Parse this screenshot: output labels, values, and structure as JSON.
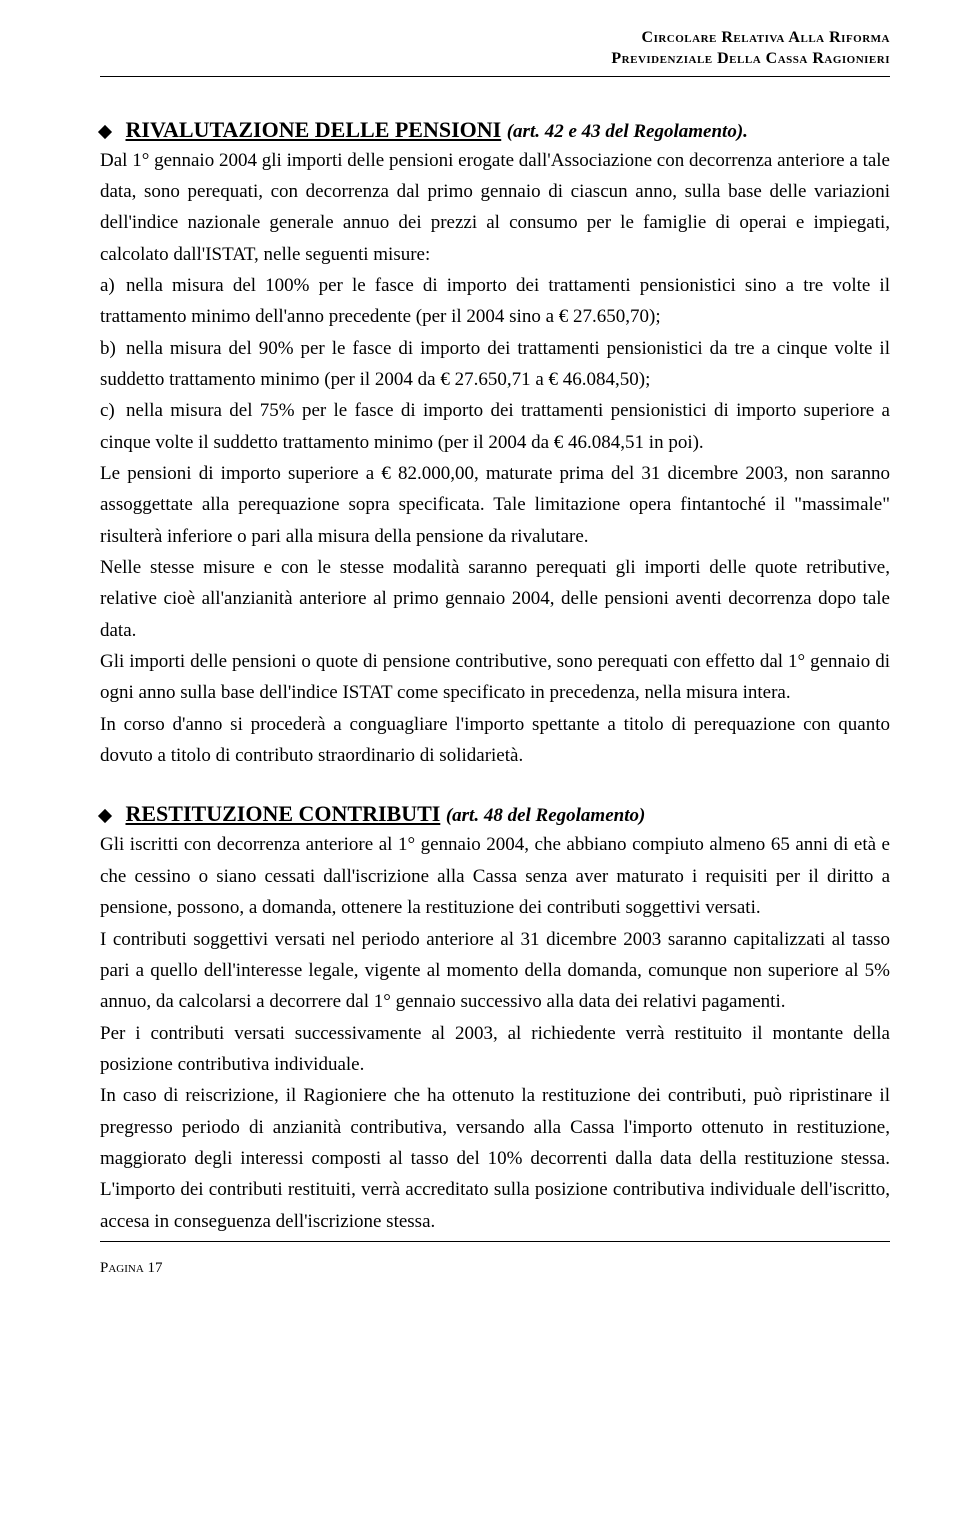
{
  "header": {
    "line1": "Circolare Relativa Alla Riforma",
    "line2": "Previdenziale Della Cassa Ragionieri"
  },
  "section1": {
    "title_main": "RIVALUTAZIONE DELLE PENSIONI",
    "title_sub": "(art. 42 e 43 del Regolamento).",
    "p1": "Dal 1° gennaio 2004 gli importi delle pensioni erogate dall'Associazione con decorrenza anteriore a tale data, sono perequati, con decorrenza dal primo gennaio di ciascun anno, sulla base delle variazioni dell'indice nazionale generale annuo dei prezzi al consumo per le famiglie di operai e impiegati, calcolato dall'ISTAT, nelle seguenti misure:",
    "a_label": "a)",
    "a_text": "nella misura del 100% per le fasce di importo dei trattamenti pensionistici sino a tre volte il trattamento minimo dell'anno precedente (per il 2004 sino a € 27.650,70);",
    "b_label": "b)",
    "b_text": "nella misura del 90% per le fasce di importo dei trattamenti pensionistici da tre a cinque volte il suddetto trattamento minimo (per il 2004 da € 27.650,71 a € 46.084,50);",
    "c_label": "c)",
    "c_text": "nella misura del 75% per le fasce di importo dei trattamenti pensionistici di importo superiore a cinque volte il suddetto trattamento minimo (per il 2004 da € 46.084,51 in poi).",
    "p2": "Le pensioni di importo superiore a € 82.000,00, maturate prima del 31 dicembre 2003, non saranno assoggettate alla perequazione sopra specificata. Tale limitazione opera fintantoché il \"massimale\" risulterà inferiore o pari alla misura della pensione da rivalutare.",
    "p3": "Nelle stesse misure e con le stesse modalità saranno perequati gli importi delle quote retributive, relative cioè all'anzianità anteriore al primo gennaio 2004, delle pensioni aventi decorrenza dopo tale data.",
    "p4": "Gli importi delle pensioni o quote di pensione contributive, sono perequati con effetto dal 1° gennaio di ogni anno sulla base dell'indice ISTAT come specificato in precedenza, nella misura intera.",
    "p5": "In corso d'anno si procederà a conguagliare l'importo spettante a titolo di perequazione con quanto dovuto a titolo di contributo straordinario di solidarietà."
  },
  "section2": {
    "title_main": "RESTITUZIONE CONTRIBUTI",
    "title_sub": "(art. 48 del Regolamento)",
    "p1": "Gli iscritti con decorrenza anteriore al 1° gennaio 2004, che abbiano compiuto almeno 65 anni di età e che cessino o siano cessati dall'iscrizione alla Cassa senza aver maturato i requisiti per il diritto a pensione, possono, a domanda, ottenere la restituzione dei contributi soggettivi versati.",
    "p2": "I contributi soggettivi versati nel periodo anteriore al 31 dicembre 2003 saranno capitalizzati al tasso pari a quello dell'interesse legale, vigente al momento della domanda, comunque non superiore al 5% annuo, da calcolarsi a decorrere dal 1° gennaio successivo alla data dei relativi pagamenti.",
    "p3": "Per i contributi versati successivamente al 2003, al richiedente verrà restituito il montante della posizione contributiva individuale.",
    "p4": "In caso di reiscrizione, il Ragioniere che ha ottenuto la restituzione dei contributi, può ripristinare il pregresso periodo di anzianità contributiva, versando alla Cassa l'importo ottenuto in restituzione, maggiorato degli interessi composti al tasso del 10% decorrenti dalla data della restituzione stessa. L'importo dei contributi restituiti, verrà accreditato sulla posizione contributiva individuale dell'iscritto, accesa in conseguenza dell'iscrizione stessa."
  },
  "footer": {
    "page": "Pagina 17"
  }
}
